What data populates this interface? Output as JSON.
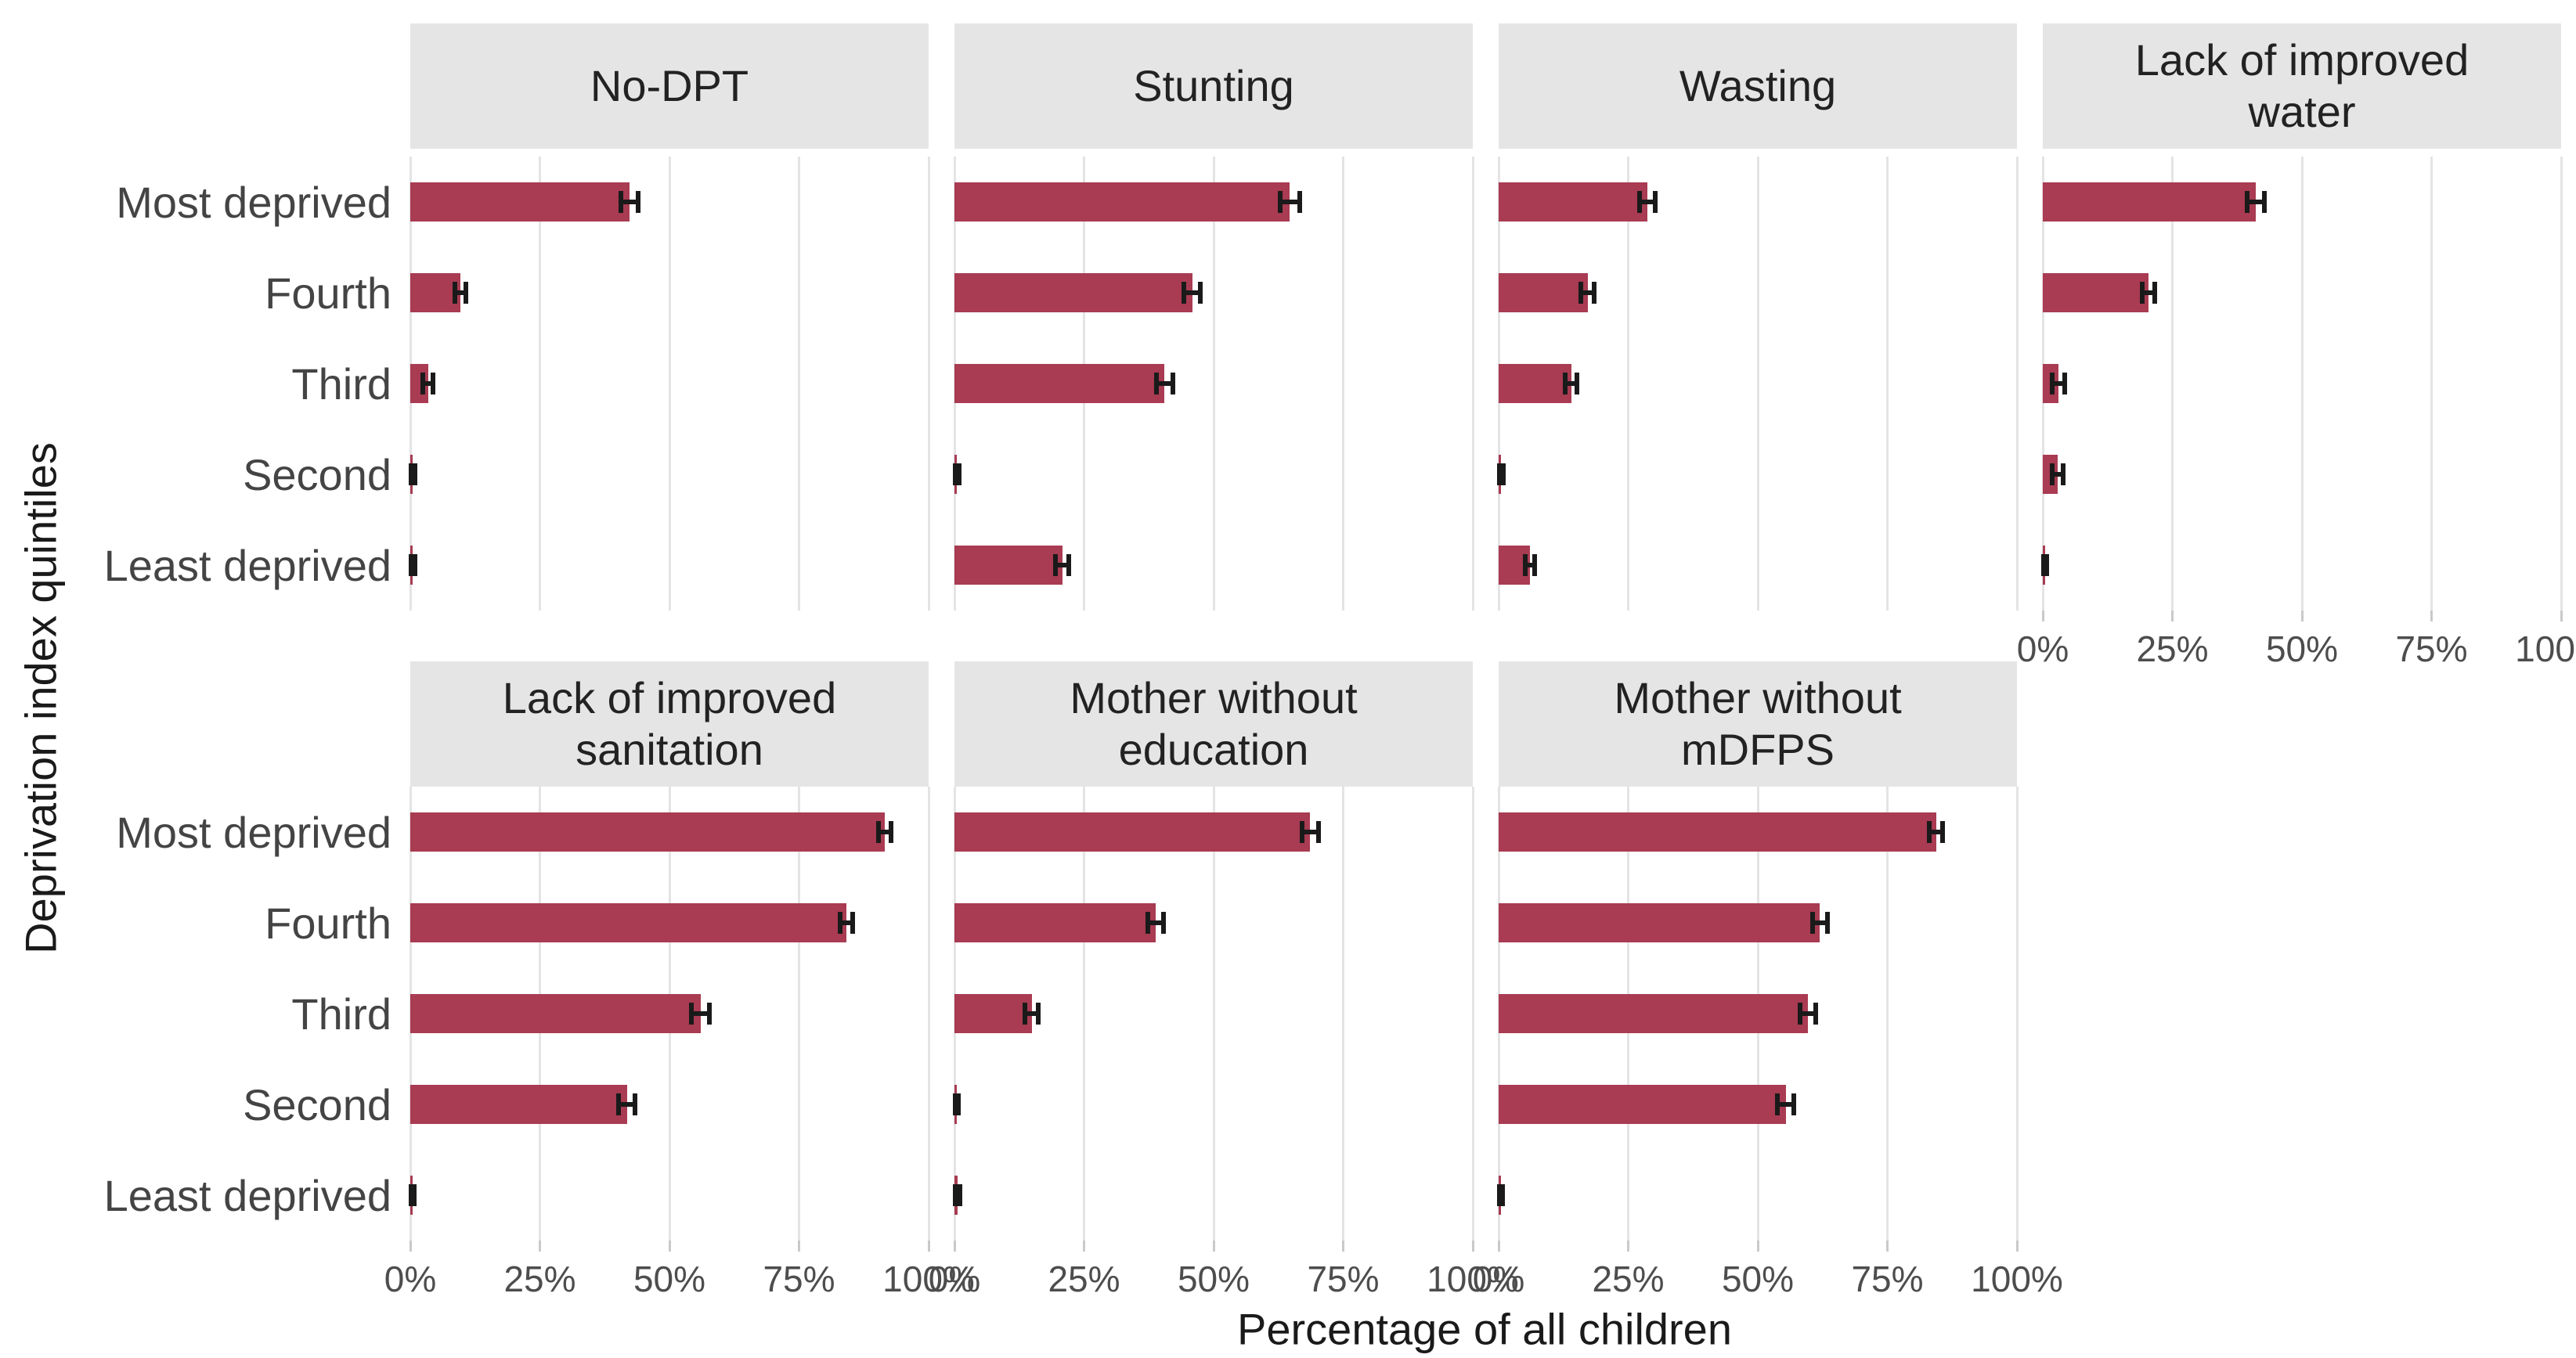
{
  "chart_data": {
    "type": "bar",
    "orientation": "horizontal",
    "title": "",
    "xlabel": "Percentage of all children",
    "ylabel": "Deprivation index quintiles",
    "categories": [
      "Most deprived",
      "Fourth",
      "Third",
      "Second",
      "Least deprived"
    ],
    "x_ticks": [
      {
        "label": "0%",
        "value": 0
      },
      {
        "label": "25%",
        "value": 25
      },
      {
        "label": "50%",
        "value": 50
      },
      {
        "label": "75%",
        "value": 75
      },
      {
        "label": "100%",
        "value": 100
      }
    ],
    "xlim": [
      0,
      100
    ],
    "grid": "vertical major gridlines only",
    "legend": "none",
    "error_bars": true,
    "colors": {
      "bar": "#A93B52",
      "error_bar": "#1A1A1A",
      "strip_background": "#E5E5E5",
      "strip_text": "#222222",
      "gridline": "#E4E4E4",
      "tick_mark": "#C9C9C9",
      "tick_label": "#4D4D4D",
      "category_label": "#444444",
      "axis_title": "#1A1A1A",
      "panel_background": "#FFFFFF"
    },
    "facets": [
      {
        "label": "No-DPT",
        "row": 1,
        "col": 0,
        "show_x_axis": false,
        "values": [
          42.3,
          9.7,
          3.4,
          0.5,
          0.5
        ],
        "errors": [
          1.7,
          1.1,
          1.0,
          0.4,
          0.4
        ]
      },
      {
        "label": "Stunting",
        "row": 1,
        "col": 1,
        "show_x_axis": false,
        "values": [
          64.7,
          45.9,
          40.5,
          0.5,
          20.8
        ],
        "errors": [
          1.9,
          1.6,
          1.6,
          0.4,
          1.3
        ]
      },
      {
        "label": "Wasting",
        "row": 1,
        "col": 2,
        "show_x_axis": false,
        "values": [
          28.7,
          17.2,
          14.0,
          0.5,
          6.0
        ],
        "errors": [
          1.5,
          1.3,
          1.1,
          0.4,
          0.9
        ]
      },
      {
        "label": "Lack of improved water",
        "row": 1,
        "col": 3,
        "show_x_axis": true,
        "values": [
          41.1,
          20.4,
          3.0,
          2.9,
          0.5
        ],
        "errors": [
          1.6,
          1.2,
          1.2,
          1.1,
          0.3
        ]
      },
      {
        "label": "Lack of improved sanitation",
        "row": 2,
        "col": 0,
        "show_x_axis": true,
        "values": [
          91.5,
          84.1,
          56.0,
          41.8,
          0.5
        ],
        "errors": [
          1.2,
          1.2,
          1.7,
          1.6,
          0.3
        ]
      },
      {
        "label": "Mother without education",
        "row": 2,
        "col": 1,
        "show_x_axis": true,
        "values": [
          68.6,
          38.8,
          14.9,
          0.5,
          0.6
        ],
        "errors": [
          1.6,
          1.5,
          1.3,
          0.3,
          0.4
        ]
      },
      {
        "label": "Mother without mDFPS",
        "row": 2,
        "col": 2,
        "show_x_axis": true,
        "values": [
          84.4,
          62.0,
          59.7,
          55.4,
          0.5
        ],
        "errors": [
          1.3,
          1.5,
          1.5,
          1.6,
          0.3
        ]
      }
    ]
  }
}
